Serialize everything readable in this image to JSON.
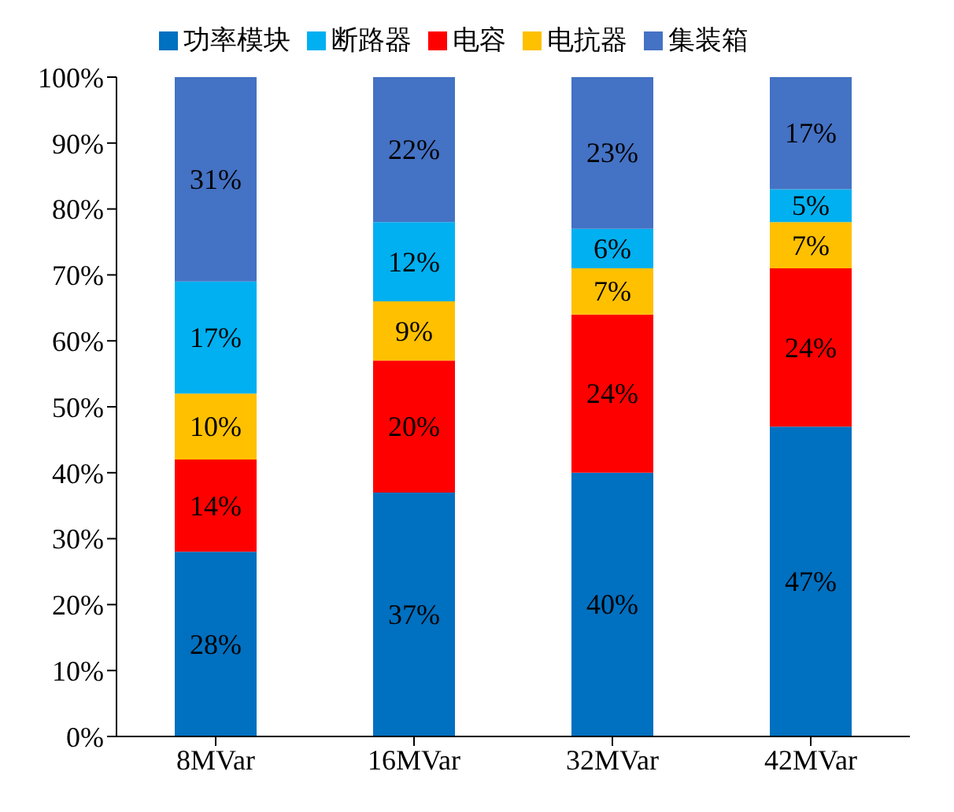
{
  "chart_data": {
    "type": "bar",
    "stacked": true,
    "categories": [
      "8MVar",
      "16MVar",
      "32MVar",
      "42MVar"
    ],
    "series": [
      {
        "name": "功率模块",
        "color": "#0070c0",
        "values": [
          28,
          37,
          40,
          47
        ],
        "value_labels": [
          "28%",
          "37%",
          "40%",
          "47%"
        ]
      },
      {
        "name": "电容",
        "color": "#ff0000",
        "values": [
          14,
          20,
          24,
          24
        ],
        "value_labels": [
          "14%",
          "20%",
          "24%",
          "24%"
        ]
      },
      {
        "name": "电抗器",
        "color": "#ffc000",
        "values": [
          10,
          9,
          7,
          7
        ],
        "value_labels": [
          "10%",
          "9%",
          "7%",
          "7%"
        ]
      },
      {
        "name": "断路器",
        "color": "#00b0f0",
        "values": [
          17,
          12,
          6,
          5
        ],
        "value_labels": [
          "17%",
          "12%",
          "6%",
          "5%"
        ]
      },
      {
        "name": "集装箱",
        "color": "#4472c4",
        "values": [
          31,
          22,
          23,
          17
        ],
        "value_labels": [
          "31%",
          "22%",
          "23%",
          "17%"
        ]
      }
    ],
    "ylim": [
      0,
      100
    ],
    "yticks": [
      {
        "value": 0,
        "label": "0%"
      },
      {
        "value": 10,
        "label": "10%"
      },
      {
        "value": 20,
        "label": "20%"
      },
      {
        "value": 30,
        "label": "30%"
      },
      {
        "value": 40,
        "label": "40%"
      },
      {
        "value": 50,
        "label": "50%"
      },
      {
        "value": 60,
        "label": "60%"
      },
      {
        "value": 70,
        "label": "70%"
      },
      {
        "value": 80,
        "label": "80%"
      },
      {
        "value": 90,
        "label": "90%"
      },
      {
        "value": 100,
        "label": "100%"
      }
    ],
    "grid": false,
    "legend": "top"
  }
}
